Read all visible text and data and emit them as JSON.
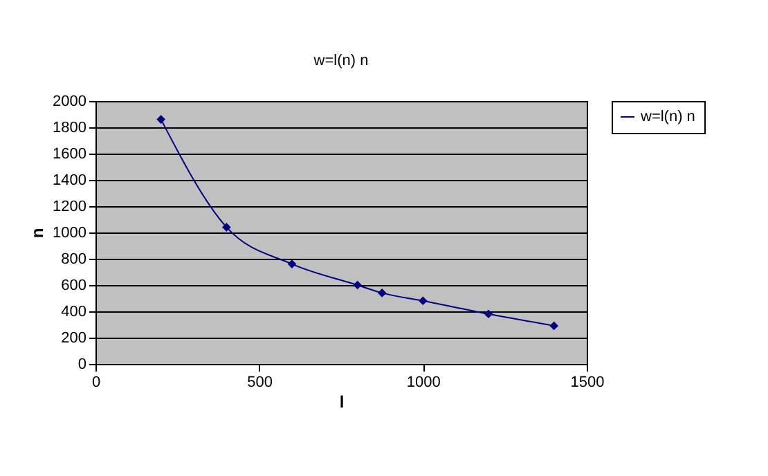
{
  "chart_data": {
    "type": "line",
    "title": "w=l(n) n",
    "xlabel": "l",
    "ylabel": "n",
    "x": [
      200,
      400,
      600,
      800,
      875,
      1000,
      1200,
      1400
    ],
    "series": [
      {
        "name": "w=l(n) n",
        "color": "#000080",
        "values": [
          1860,
          1040,
          760,
          600,
          540,
          480,
          380,
          290
        ]
      }
    ],
    "xlim": [
      0,
      1500
    ],
    "xticks": [
      0,
      500,
      1000,
      1500
    ],
    "ylim": [
      0,
      2000
    ],
    "yticks": [
      0,
      200,
      400,
      600,
      800,
      1000,
      1200,
      1400,
      1600,
      1800,
      2000
    ],
    "grid": "y",
    "legend": "right",
    "marker": "diamond",
    "line_style": "solid"
  }
}
